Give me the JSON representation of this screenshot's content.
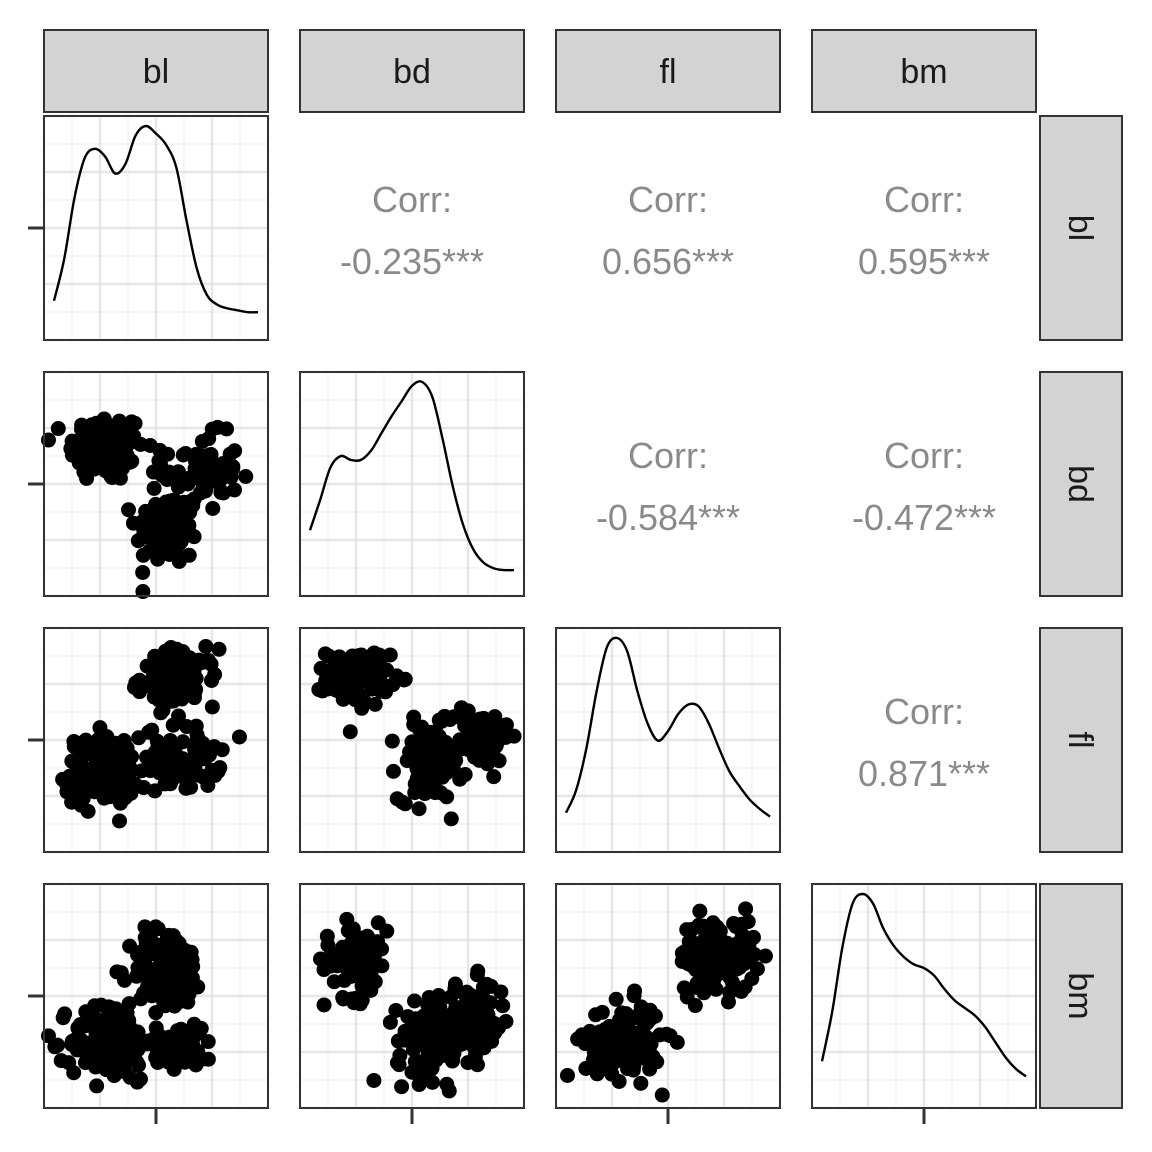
{
  "chart_data": {
    "type": "scatter",
    "variables": [
      "bl",
      "bd",
      "fl",
      "bm"
    ],
    "grid": true,
    "upper": [
      {
        "row": "bl",
        "col": "bd",
        "label": "Corr:",
        "value": "-0.235***"
      },
      {
        "row": "bl",
        "col": "fl",
        "label": "Corr:",
        "value": "0.656***"
      },
      {
        "row": "bl",
        "col": "bm",
        "label": "Corr:",
        "value": "0.595***"
      },
      {
        "row": "bd",
        "col": "fl",
        "label": "Corr:",
        "value": "-0.584***"
      },
      {
        "row": "bd",
        "col": "bm",
        "label": "Corr:",
        "value": "-0.472***"
      },
      {
        "row": "fl",
        "col": "bm",
        "label": "Corr:",
        "value": "0.871***"
      }
    ],
    "diagonal": [
      {
        "variable": "bl",
        "x": [
          0.0,
          0.05,
          0.1,
          0.15,
          0.2,
          0.25,
          0.3,
          0.35,
          0.4,
          0.45,
          0.5,
          0.55,
          0.6,
          0.65,
          0.7,
          0.75,
          0.8,
          0.85,
          0.9,
          0.95,
          1.0
        ],
        "density": [
          0.08,
          0.3,
          0.62,
          0.83,
          0.88,
          0.84,
          0.75,
          0.8,
          0.95,
          1.0,
          0.96,
          0.9,
          0.78,
          0.5,
          0.25,
          0.11,
          0.06,
          0.04,
          0.03,
          0.02,
          0.02
        ]
      },
      {
        "variable": "bd",
        "x": [
          0.0,
          0.05,
          0.1,
          0.15,
          0.2,
          0.25,
          0.3,
          0.35,
          0.4,
          0.45,
          0.5,
          0.55,
          0.6,
          0.65,
          0.7,
          0.75,
          0.8,
          0.85,
          0.9,
          0.95,
          1.0
        ],
        "density": [
          0.22,
          0.38,
          0.55,
          0.61,
          0.59,
          0.59,
          0.64,
          0.73,
          0.82,
          0.9,
          0.98,
          1.0,
          0.92,
          0.7,
          0.45,
          0.25,
          0.12,
          0.05,
          0.02,
          0.01,
          0.01
        ]
      },
      {
        "variable": "fl",
        "x": [
          0.0,
          0.05,
          0.1,
          0.15,
          0.2,
          0.25,
          0.3,
          0.35,
          0.4,
          0.45,
          0.5,
          0.55,
          0.6,
          0.65,
          0.7,
          0.75,
          0.8,
          0.85,
          0.9,
          0.95,
          1.0
        ],
        "density": [
          0.08,
          0.2,
          0.42,
          0.72,
          0.95,
          1.0,
          0.93,
          0.72,
          0.55,
          0.46,
          0.51,
          0.6,
          0.65,
          0.64,
          0.55,
          0.42,
          0.3,
          0.22,
          0.15,
          0.1,
          0.06
        ]
      },
      {
        "variable": "bm",
        "x": [
          0.0,
          0.05,
          0.1,
          0.15,
          0.2,
          0.25,
          0.3,
          0.35,
          0.4,
          0.45,
          0.5,
          0.55,
          0.6,
          0.65,
          0.7,
          0.75,
          0.8,
          0.85,
          0.9,
          0.95,
          1.0
        ],
        "density": [
          0.12,
          0.38,
          0.72,
          0.95,
          1.0,
          0.95,
          0.82,
          0.73,
          0.67,
          0.63,
          0.61,
          0.57,
          0.5,
          0.44,
          0.4,
          0.36,
          0.3,
          0.22,
          0.14,
          0.08,
          0.04
        ]
      }
    ],
    "clusters": {
      "bl_bd": [
        {
          "cx": 0.28,
          "cy": 0.66,
          "sx": 0.12,
          "sy": 0.11,
          "n": 120
        },
        {
          "cx": 0.55,
          "cy": 0.3,
          "sx": 0.1,
          "sy": 0.12,
          "n": 100
        },
        {
          "cx": 0.7,
          "cy": 0.55,
          "sx": 0.12,
          "sy": 0.12,
          "n": 70
        }
      ],
      "bl_fl": [
        {
          "cx": 0.26,
          "cy": 0.36,
          "sx": 0.12,
          "sy": 0.11,
          "n": 130
        },
        {
          "cx": 0.6,
          "cy": 0.78,
          "sx": 0.12,
          "sy": 0.09,
          "n": 100
        },
        {
          "cx": 0.62,
          "cy": 0.42,
          "sx": 0.12,
          "sy": 0.1,
          "n": 70
        }
      ],
      "bd_fl": [
        {
          "cx": 0.26,
          "cy": 0.78,
          "sx": 0.1,
          "sy": 0.09,
          "n": 90
        },
        {
          "cx": 0.58,
          "cy": 0.4,
          "sx": 0.1,
          "sy": 0.12,
          "n": 120
        },
        {
          "cx": 0.8,
          "cy": 0.52,
          "sx": 0.1,
          "sy": 0.1,
          "n": 60
        }
      ],
      "bl_bm": [
        {
          "cx": 0.3,
          "cy": 0.3,
          "sx": 0.13,
          "sy": 0.13,
          "n": 140
        },
        {
          "cx": 0.55,
          "cy": 0.62,
          "sx": 0.12,
          "sy": 0.13,
          "n": 110
        },
        {
          "cx": 0.62,
          "cy": 0.28,
          "sx": 0.1,
          "sy": 0.08,
          "n": 50
        }
      ],
      "bd_bm": [
        {
          "cx": 0.25,
          "cy": 0.66,
          "sx": 0.1,
          "sy": 0.12,
          "n": 80
        },
        {
          "cx": 0.6,
          "cy": 0.3,
          "sx": 0.12,
          "sy": 0.12,
          "n": 120
        },
        {
          "cx": 0.78,
          "cy": 0.4,
          "sx": 0.1,
          "sy": 0.12,
          "n": 70
        }
      ],
      "fl_bm": [
        {
          "cx": 0.3,
          "cy": 0.3,
          "sx": 0.12,
          "sy": 0.12,
          "n": 130
        },
        {
          "cx": 0.72,
          "cy": 0.68,
          "sx": 0.12,
          "sy": 0.12,
          "n": 130
        }
      ]
    }
  }
}
